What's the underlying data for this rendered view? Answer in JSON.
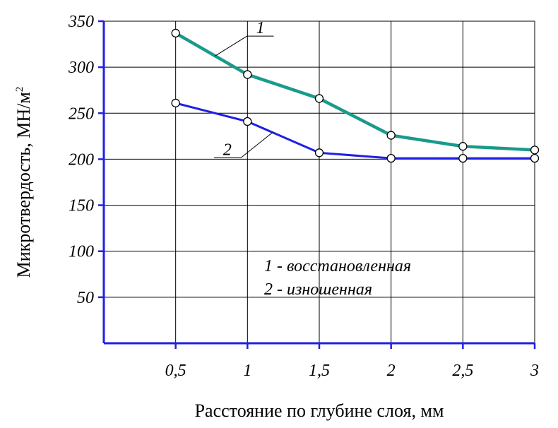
{
  "chart_data": {
    "type": "line",
    "title": "",
    "xlabel": "Расстояние по глубине слоя, мм",
    "ylabel": "Микротвердость, МН/м",
    "ylabel_sup": "2",
    "x": [
      0.5,
      1,
      1.5,
      2,
      2.5,
      3
    ],
    "x_tick_labels": [
      "0,5",
      "1",
      "1,5",
      "2",
      "2,5",
      "3"
    ],
    "y_ticks": [
      50,
      100,
      150,
      200,
      250,
      300,
      350
    ],
    "xlim": [
      0,
      3
    ],
    "ylim": [
      0,
      350
    ],
    "grid": true,
    "series": [
      {
        "name": "1",
        "values": [
          337,
          292,
          266,
          226,
          214,
          210
        ],
        "color": "#1a9a8a"
      },
      {
        "name": "2",
        "values": [
          261,
          241,
          207,
          201,
          201,
          201
        ],
        "color": "#1f1fe6"
      }
    ],
    "annotations": [
      {
        "label": "1",
        "series_index": 0
      },
      {
        "label": "2",
        "series_index": 1
      }
    ],
    "legend": {
      "placement": "center-right",
      "entries": [
        "1 - восстановленная",
        "2 - изношенная"
      ]
    },
    "axis_color": "#1f1fe6"
  }
}
